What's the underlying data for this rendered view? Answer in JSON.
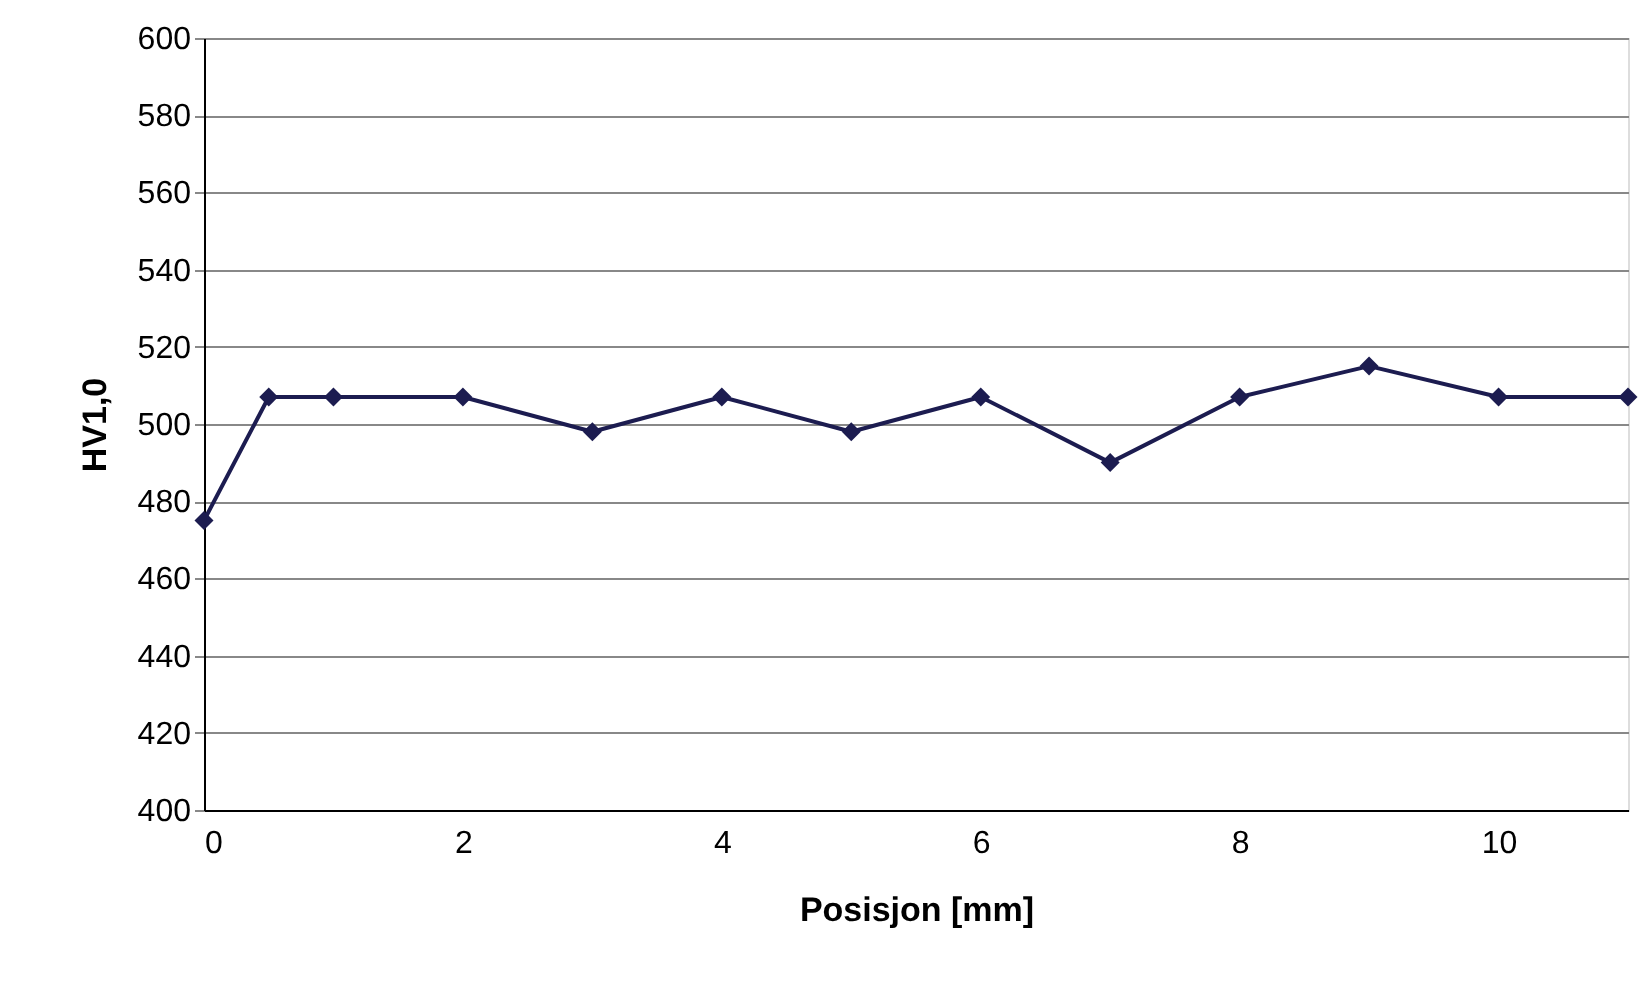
{
  "chart_data": {
    "type": "line",
    "xlabel": "Posisjon [mm]",
    "ylabel": "HV1,0",
    "x": [
      0,
      0.5,
      1,
      2,
      3,
      4,
      5,
      6,
      7,
      8,
      9,
      10,
      11
    ],
    "series": [
      {
        "color": "#1c1c50",
        "values": [
          475,
          507,
          507,
          507,
          498,
          507,
          498,
          507,
          490,
          507,
          515,
          507,
          507
        ]
      }
    ],
    "xlim": [
      0,
      11
    ],
    "xticks": [
      0,
      2,
      4,
      6,
      8,
      10
    ],
    "ylim": [
      400,
      600
    ],
    "yticks": [
      400,
      420,
      440,
      460,
      480,
      500,
      520,
      540,
      560,
      580,
      600
    ],
    "grid": "y",
    "marker": "diamond",
    "line_style": "solid"
  }
}
